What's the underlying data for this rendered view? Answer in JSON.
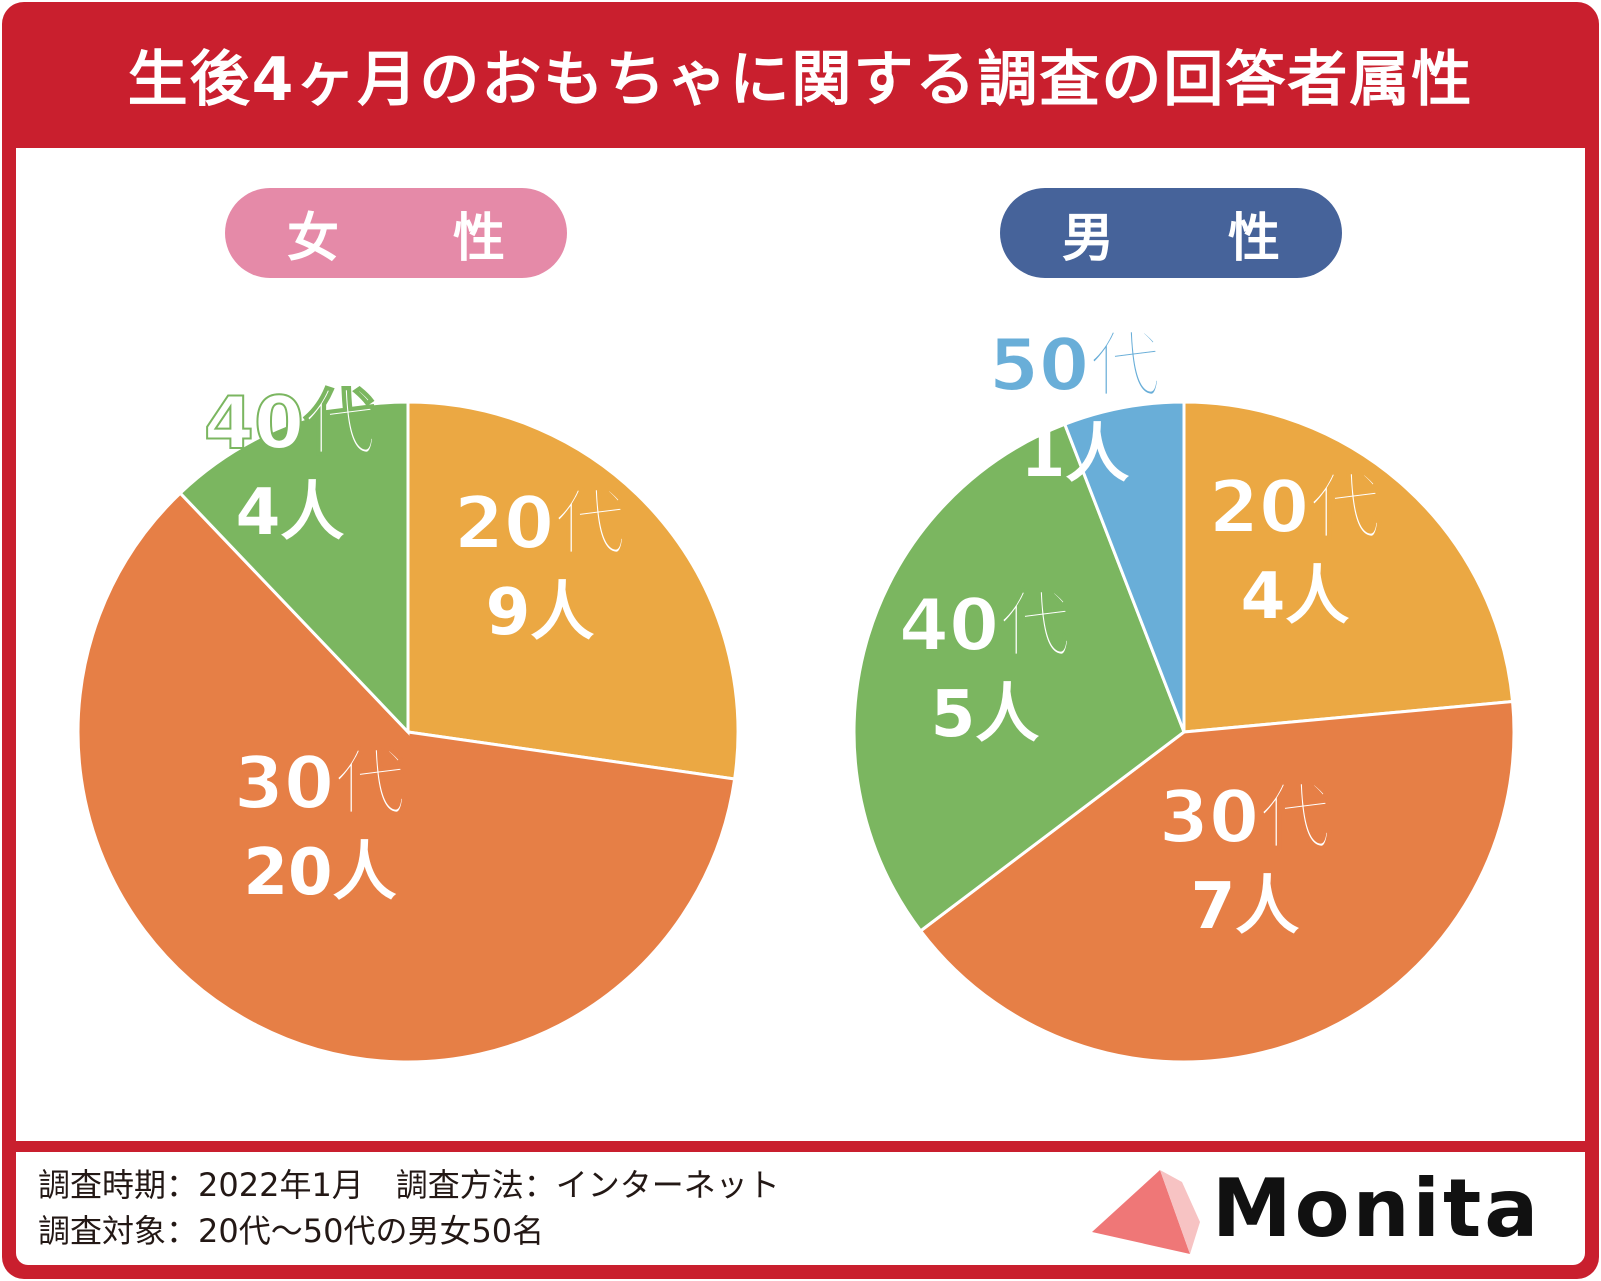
{
  "title": "生後4ヶ月のおもちゃに関する調査の回答者属性",
  "colors": {
    "frame": "#c91f2e",
    "female_pill": "#e58aa8",
    "male_pill": "#46639a",
    "age20": "#eba843",
    "age30": "#e67f46",
    "age40": "#7bb660",
    "age50": "#69aed8"
  },
  "chart_data": [
    {
      "type": "pie",
      "title": "女 性",
      "unit": "人",
      "slices": [
        {
          "label": "20代",
          "value": 9,
          "value_label": "9人",
          "color": "#eba843"
        },
        {
          "label": "30代",
          "value": 20,
          "value_label": "20人",
          "color": "#e67f46"
        },
        {
          "label": "40代",
          "value": 4,
          "value_label": "4人",
          "color": "#7bb660"
        }
      ]
    },
    {
      "type": "pie",
      "title": "男 性",
      "unit": "人",
      "slices": [
        {
          "label": "20代",
          "value": 4,
          "value_label": "4人",
          "color": "#eba843"
        },
        {
          "label": "30代",
          "value": 7,
          "value_label": "7人",
          "color": "#e67f46"
        },
        {
          "label": "40代",
          "value": 5,
          "value_label": "5人",
          "color": "#7bb660"
        },
        {
          "label": "50代",
          "value": 1,
          "value_label": "1人",
          "color": "#69aed8"
        }
      ]
    }
  ],
  "footer": {
    "line1": "調査時期：2022年1月　調査方法：インターネット",
    "line2": "調査対象：20代～50代の男女50名"
  },
  "logo": {
    "text": "Monita"
  }
}
